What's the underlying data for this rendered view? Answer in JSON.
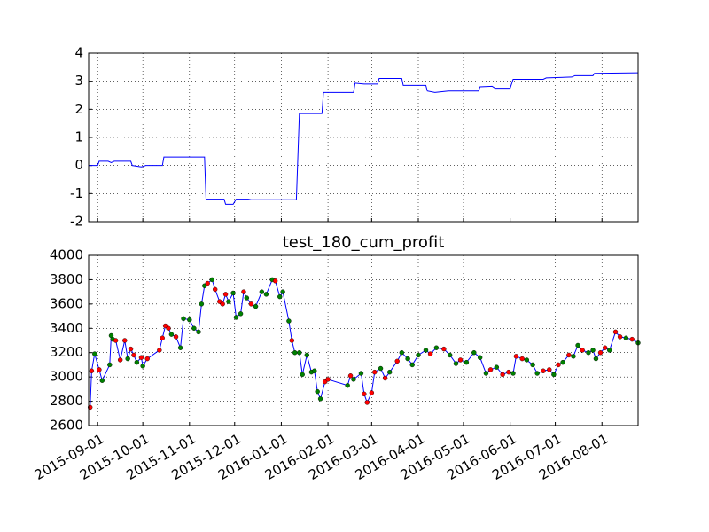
{
  "chart_data": [
    {
      "type": "line",
      "color": "#0000ff",
      "grid": true,
      "tick_labels": false,
      "xlim": [
        "2015-08-26",
        "2016-08-25"
      ],
      "xticks": [
        "2015-09-01",
        "2015-10-01",
        "2015-11-01",
        "2015-12-01",
        "2016-01-01",
        "2016-02-01",
        "2016-03-01",
        "2016-04-01",
        "2016-05-01",
        "2016-06-01",
        "2016-07-01",
        "2016-08-01"
      ],
      "ylim": [
        -2,
        4
      ],
      "yticks": [
        -2,
        -1,
        0,
        1,
        2,
        3,
        4
      ],
      "x": [
        "2015-08-26",
        "2015-09-01",
        "2015-09-02",
        "2015-09-08",
        "2015-09-10",
        "2015-09-12",
        "2015-09-23",
        "2015-09-24",
        "2015-09-30",
        "2015-10-03",
        "2015-10-14",
        "2015-10-15",
        "2015-11-11",
        "2015-11-12",
        "2015-11-24",
        "2015-11-25",
        "2015-11-30",
        "2015-12-02",
        "2015-12-10",
        "2015-12-12",
        "2016-01-11",
        "2016-01-13",
        "2016-01-28",
        "2016-01-29",
        "2016-02-18",
        "2016-02-19",
        "2016-02-25",
        "2016-03-05",
        "2016-03-06",
        "2016-03-21",
        "2016-03-22",
        "2016-04-06",
        "2016-04-07",
        "2016-04-12",
        "2016-04-21",
        "2016-05-11",
        "2016-05-12",
        "2016-05-20",
        "2016-05-22",
        "2016-06-01",
        "2016-06-03",
        "2016-06-23",
        "2016-06-25",
        "2016-07-12",
        "2016-07-14",
        "2016-07-26",
        "2016-07-27",
        "2016-08-25"
      ],
      "values": [
        0,
        0,
        0.15,
        0.15,
        0.1,
        0.15,
        0.15,
        0,
        -0.05,
        0,
        0,
        0.3,
        0.3,
        -1.2,
        -1.2,
        -1.38,
        -1.38,
        -1.2,
        -1.2,
        -1.22,
        -1.22,
        1.85,
        1.85,
        2.6,
        2.6,
        2.93,
        2.9,
        2.9,
        3.1,
        3.1,
        2.85,
        2.85,
        2.65,
        2.6,
        2.65,
        2.65,
        2.8,
        2.82,
        2.75,
        2.75,
        3.07,
        3.07,
        3.12,
        3.15,
        3.2,
        3.2,
        3.28,
        3.3
      ]
    },
    {
      "type": "line",
      "title": "test_180_cum_profit",
      "color": "#0000ff",
      "grid": true,
      "tick_labels": true,
      "xlim": [
        "2015-08-26",
        "2016-08-25"
      ],
      "xticks": [
        "2015-09-01",
        "2015-10-01",
        "2015-11-01",
        "2015-12-01",
        "2016-01-01",
        "2016-02-01",
        "2016-03-01",
        "2016-04-01",
        "2016-05-01",
        "2016-06-01",
        "2016-07-01",
        "2016-08-01"
      ],
      "ylim": [
        2600,
        4000
      ],
      "yticks": [
        2600,
        2800,
        3000,
        3200,
        3400,
        3600,
        3800,
        4000
      ],
      "x": [
        "2015-08-27",
        "2015-08-28",
        "2015-08-30",
        "2015-09-02",
        "2015-09-04",
        "2015-09-09",
        "2015-09-10",
        "2015-09-11",
        "2015-09-13",
        "2015-09-16",
        "2015-09-19",
        "2015-09-21",
        "2015-09-23",
        "2015-09-25",
        "2015-09-27",
        "2015-09-30",
        "2015-10-01",
        "2015-10-04",
        "2015-10-12",
        "2015-10-14",
        "2015-10-16",
        "2015-10-18",
        "2015-10-20",
        "2015-10-23",
        "2015-10-26",
        "2015-10-28",
        "2015-11-01",
        "2015-11-04",
        "2015-11-07",
        "2015-11-09",
        "2015-11-11",
        "2015-11-13",
        "2015-11-16",
        "2015-11-18",
        "2015-11-21",
        "2015-11-23",
        "2015-11-25",
        "2015-11-27",
        "2015-11-30",
        "2015-12-02",
        "2015-12-05",
        "2015-12-07",
        "2015-12-09",
        "2015-12-12",
        "2015-12-15",
        "2015-12-19",
        "2015-12-22",
        "2015-12-26",
        "2015-12-28",
        "2015-12-31",
        "2016-01-02",
        "2016-01-06",
        "2016-01-08",
        "2016-01-10",
        "2016-01-13",
        "2016-01-15",
        "2016-01-18",
        "2016-01-21",
        "2016-01-23",
        "2016-01-25",
        "2016-01-27",
        "2016-01-30",
        "2016-02-01",
        "2016-02-14",
        "2016-02-16",
        "2016-02-18",
        "2016-02-23",
        "2016-02-25",
        "2016-02-27",
        "2016-03-01",
        "2016-03-03",
        "2016-03-07",
        "2016-03-10",
        "2016-03-13",
        "2016-03-18",
        "2016-03-21",
        "2016-03-25",
        "2016-03-28",
        "2016-04-01",
        "2016-04-06",
        "2016-04-09",
        "2016-04-13",
        "2016-04-18",
        "2016-04-22",
        "2016-04-26",
        "2016-04-29",
        "2016-05-03",
        "2016-05-08",
        "2016-05-12",
        "2016-05-16",
        "2016-05-19",
        "2016-05-23",
        "2016-05-27",
        "2016-05-31",
        "2016-06-03",
        "2016-06-05",
        "2016-06-09",
        "2016-06-12",
        "2016-06-16",
        "2016-06-19",
        "2016-06-23",
        "2016-06-27",
        "2016-06-30",
        "2016-07-03",
        "2016-07-06",
        "2016-07-10",
        "2016-07-13",
        "2016-07-16",
        "2016-07-19",
        "2016-07-23",
        "2016-07-26",
        "2016-07-28",
        "2016-07-31",
        "2016-08-03",
        "2016-08-06",
        "2016-08-10",
        "2016-08-13",
        "2016-08-17",
        "2016-08-21",
        "2016-08-25"
      ],
      "values": [
        2750,
        3050,
        3190,
        3060,
        2970,
        3100,
        3340,
        3310,
        3300,
        3140,
        3300,
        3150,
        3230,
        3180,
        3120,
        3160,
        3090,
        3150,
        3220,
        3320,
        3420,
        3400,
        3350,
        3330,
        3240,
        3480,
        3470,
        3400,
        3370,
        3600,
        3750,
        3770,
        3800,
        3720,
        3620,
        3600,
        3680,
        3620,
        3690,
        3490,
        3520,
        3700,
        3650,
        3600,
        3580,
        3700,
        3680,
        3800,
        3790,
        3660,
        3700,
        3460,
        3300,
        3200,
        3200,
        3020,
        3180,
        3040,
        3050,
        2880,
        2820,
        2960,
        2980,
        2930,
        3010,
        2980,
        3030,
        2860,
        2790,
        2870,
        3040,
        3070,
        2990,
        3040,
        3130,
        3200,
        3150,
        3100,
        3180,
        3220,
        3190,
        3240,
        3230,
        3180,
        3110,
        3140,
        3120,
        3200,
        3160,
        3030,
        3060,
        3080,
        3020,
        3040,
        3030,
        3170,
        3150,
        3140,
        3100,
        3030,
        3050,
        3060,
        3020,
        3100,
        3120,
        3180,
        3170,
        3260,
        3220,
        3200,
        3220,
        3150,
        3200,
        3240,
        3220,
        3370,
        3330,
        3320,
        3310,
        3280
      ],
      "marker_colors": [
        "#ff0000",
        "#ff0000",
        "#008000",
        "#ff0000",
        "#008000",
        "#008000",
        "#008000",
        "#008000",
        "#ff0000",
        "#ff0000",
        "#ff0000",
        "#008000",
        "#ff0000",
        "#ff0000",
        "#008000",
        "#ff0000",
        "#008000",
        "#ff0000",
        "#ff0000",
        "#ff0000",
        "#ff0000",
        "#ff0000",
        "#008000",
        "#ff0000",
        "#008000",
        "#008000",
        "#008000",
        "#008000",
        "#008000",
        "#008000",
        "#008000",
        "#ff0000",
        "#008000",
        "#ff0000",
        "#ff0000",
        "#ff0000",
        "#ff0000",
        "#008000",
        "#008000",
        "#008000",
        "#008000",
        "#ff0000",
        "#008000",
        "#ff0000",
        "#008000",
        "#008000",
        "#008000",
        "#008000",
        "#ff0000",
        "#008000",
        "#008000",
        "#008000",
        "#ff0000",
        "#008000",
        "#008000",
        "#008000",
        "#008000",
        "#008000",
        "#008000",
        "#008000",
        "#008000",
        "#ff0000",
        "#ff0000",
        "#008000",
        "#ff0000",
        "#008000",
        "#008000",
        "#ff0000",
        "#ff0000",
        "#ff0000",
        "#ff0000",
        "#008000",
        "#ff0000",
        "#008000",
        "#ff0000",
        "#008000",
        "#008000",
        "#008000",
        "#008000",
        "#008000",
        "#ff0000",
        "#008000",
        "#ff0000",
        "#008000",
        "#008000",
        "#ff0000",
        "#008000",
        "#008000",
        "#008000",
        "#008000",
        "#ff0000",
        "#008000",
        "#ff0000",
        "#ff0000",
        "#008000",
        "#ff0000",
        "#ff0000",
        "#008000",
        "#008000",
        "#008000",
        "#ff0000",
        "#ff0000",
        "#008000",
        "#ff0000",
        "#008000",
        "#ff0000",
        "#008000",
        "#008000",
        "#ff0000",
        "#008000",
        "#008000",
        "#008000",
        "#ff0000",
        "#ff0000",
        "#008000",
        "#ff0000",
        "#ff0000",
        "#008000",
        "#ff0000",
        "#008000"
      ]
    }
  ]
}
